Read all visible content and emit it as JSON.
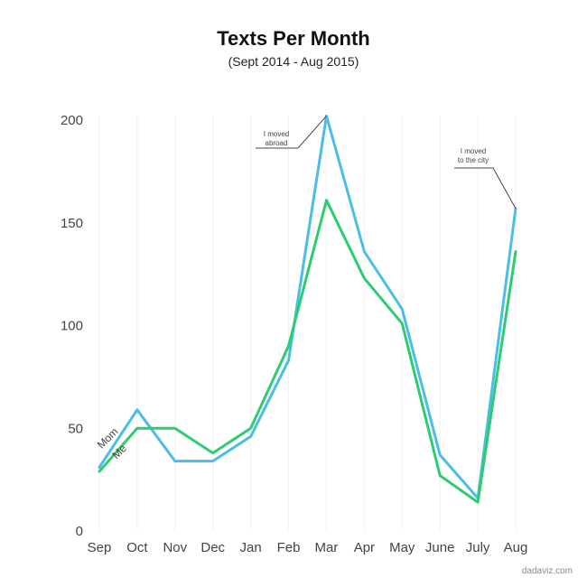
{
  "chart_data": {
    "type": "line",
    "title": "Texts Per Month",
    "subtitle": "(Sept 2014 - Aug 2015)",
    "xlabel": "",
    "ylabel": "",
    "categories": [
      "Sep",
      "Oct",
      "Nov",
      "Dec",
      "Jan",
      "Feb",
      "Mar",
      "Apr",
      "May",
      "June",
      "July",
      "Aug"
    ],
    "ylim": [
      0,
      200
    ],
    "yticks": [
      0,
      50,
      100,
      150,
      200
    ],
    "grid": true,
    "series": [
      {
        "name": "Mom",
        "color": "#4bbde6",
        "values": [
          31,
          59,
          34,
          34,
          46,
          83,
          202,
          136,
          108,
          37,
          16,
          157
        ]
      },
      {
        "name": "Me",
        "color": "#2ecc71",
        "values": [
          29,
          50,
          50,
          38,
          50,
          90,
          161,
          123,
          101,
          27,
          14,
          136
        ]
      }
    ],
    "annotations": [
      {
        "category": "Mar",
        "text_lines": [
          "I moved",
          "abroad"
        ]
      },
      {
        "category": "Aug",
        "text_lines": [
          "I moved",
          "to the city"
        ]
      }
    ]
  },
  "credit": "dadaviz.com"
}
